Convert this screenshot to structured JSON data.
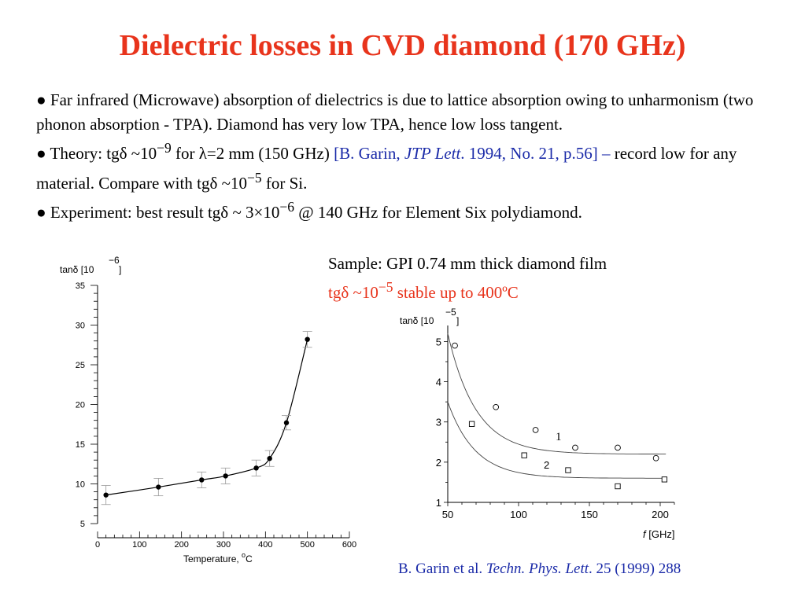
{
  "title": "Dielectric losses in CVD diamond (170 GHz)",
  "bullets": {
    "b1": "● Far infrared (Microwave) absorption of dielectrics is due to lattice absorption owing to unharmonism (two phonon absorption - TPA). Diamond has very low TPA, hence low loss tangent.",
    "b2_a": "● Theory:  tgδ ~10",
    "b2_exp1": "−9",
    "b2_b": " for λ=2 mm (150 GHz) ",
    "b2_ref_a": "[B. Garin, ",
    "b2_ref_journal": "JTP Lett",
    "b2_ref_b": ". 1994, No. 21, p.56] –",
    "b2_c": " record low for any material. Compare with tgδ ~10",
    "b2_exp2": "−5",
    "b2_d": " for Si.",
    "b3_a": "● Experiment: best result tgδ ~ 3×10",
    "b3_exp": "−6",
    "b3_b": " @ 140 GHz for Element Six polydiamond."
  },
  "sample": {
    "line1": "Sample: GPI 0.74 mm thick diamond film",
    "line2_a": "tgδ ~10",
    "line2_exp": "−5",
    "line2_b": " stable up to 400ºC"
  },
  "citation": {
    "authors": "B. Garin et al. ",
    "journal": "Techn. Phys. Lett",
    "rest": ". 25 (1999) 288"
  },
  "colors": {
    "title": "#e8341c",
    "highlight": "#e8341c",
    "reference": "#1a2aa8"
  },
  "chart_data": [
    {
      "type": "scatter",
      "ylabel": "tanδ [10",
      "ylabel_exp": "−6",
      "ylabel_close": "]",
      "xlabel": "Temperature, ",
      "xlabel_unit_sup": "o",
      "xlabel_unit": "C",
      "xlim": [
        0,
        600
      ],
      "ylim": [
        5,
        35
      ],
      "xticks": [
        0,
        100,
        200,
        300,
        400,
        500,
        600
      ],
      "yticks": [
        5,
        10,
        15,
        20,
        25,
        30,
        35
      ],
      "x": [
        20,
        145,
        248,
        305,
        378,
        410,
        450,
        500
      ],
      "y": [
        8.6,
        9.6,
        10.5,
        11.0,
        12.0,
        13.2,
        17.7,
        28.2
      ],
      "yerr": [
        1.2,
        1.1,
        1.0,
        1.0,
        1.0,
        1.0,
        0.9,
        1.0
      ],
      "curve": true
    },
    {
      "type": "scatter",
      "ylabel": "tanδ [10",
      "ylabel_exp": "−5",
      "ylabel_close": "]",
      "xlabel_var": "f",
      "xlabel": " [GHz]",
      "xlim": [
        50,
        210
      ],
      "ylim": [
        1,
        5.4
      ],
      "xticks": [
        50,
        100,
        150,
        200
      ],
      "yticks": [
        1,
        2,
        3,
        4,
        5
      ],
      "series": [
        {
          "name": "1",
          "marker": "circle",
          "x": [
            55,
            84,
            112,
            140,
            170,
            197
          ],
          "y": [
            4.9,
            3.37,
            2.8,
            2.36,
            2.36,
            2.1
          ]
        },
        {
          "name": "2",
          "marker": "square",
          "x": [
            67,
            104,
            135,
            170,
            203
          ],
          "y": [
            2.95,
            2.17,
            1.8,
            1.4,
            1.57
          ]
        }
      ],
      "fits": [
        {
          "a": 2.2,
          "b": 3.0,
          "k": 0.05
        },
        {
          "a": 1.6,
          "b": 1.9,
          "k": 0.052
        }
      ]
    }
  ]
}
